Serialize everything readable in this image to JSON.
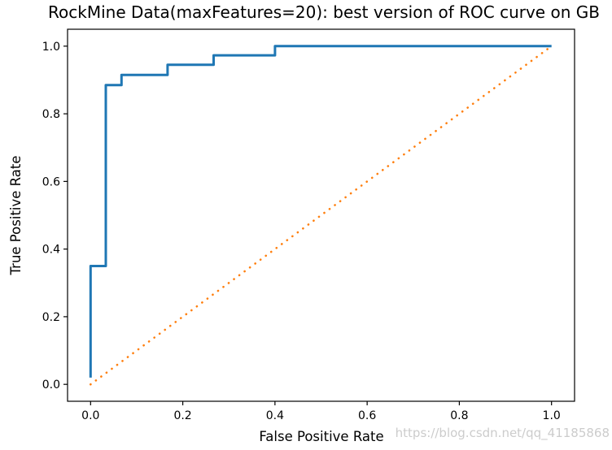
{
  "figure": {
    "title": "RockMine Data(maxFeatures=20): best version of ROC curve on GB",
    "watermark": "https://blog.csdn.net/qq_41185868"
  },
  "chart_data": {
    "type": "line",
    "title": "RockMine Data(maxFeatures=20): best version of ROC curve on GB",
    "xlabel": "False Positive Rate",
    "ylabel": "True Positive Rate",
    "xlim": [
      -0.05,
      1.05
    ],
    "ylim": [
      -0.05,
      1.05
    ],
    "x_ticks": [
      0.0,
      0.2,
      0.4,
      0.6,
      0.8,
      1.0
    ],
    "y_ticks": [
      0.0,
      0.2,
      0.4,
      0.6,
      0.8,
      1.0
    ],
    "grid": false,
    "legend": "none",
    "series": [
      {
        "name": "roc-curve-gb",
        "color": "#1f77b4",
        "style": "solid",
        "line_width": 3,
        "points": [
          [
            0.0,
            0.02
          ],
          [
            0.0,
            0.35
          ],
          [
            0.033,
            0.35
          ],
          [
            0.033,
            0.885
          ],
          [
            0.067,
            0.885
          ],
          [
            0.067,
            0.915
          ],
          [
            0.167,
            0.915
          ],
          [
            0.167,
            0.945
          ],
          [
            0.267,
            0.945
          ],
          [
            0.267,
            0.973
          ],
          [
            0.4,
            0.973
          ],
          [
            0.4,
            1.0
          ],
          [
            1.0,
            1.0
          ]
        ]
      },
      {
        "name": "chance-diagonal",
        "color": "#ff7f0e",
        "style": "dotted",
        "line_width": 2.6,
        "points": [
          [
            0.0,
            0.0
          ],
          [
            1.0,
            1.0
          ]
        ]
      }
    ]
  },
  "style": {
    "spine_color": "#000000",
    "tick_color": "#000000",
    "watermark_color": "#cccccc",
    "background": "#ffffff"
  }
}
